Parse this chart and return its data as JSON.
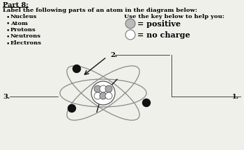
{
  "title_part": "Part 8:",
  "subtitle": "Label the following parts of an atom in the diagram below:",
  "bullets": [
    "Nucleus",
    "Atom",
    "Protons",
    "Neutrons",
    "Electrons"
  ],
  "key_title": "Use the key below to help you:",
  "key_positive_color": "#bbbbbb",
  "key_positive_label": "= positive",
  "key_nocharge_color": "#ffffff",
  "key_nocharge_label": "= no charge",
  "labels": [
    "1.",
    "2.",
    "3."
  ],
  "bg_color": "#f0f0eb",
  "proton_color": "#aaaaaa",
  "neutron_color": "#ffffff",
  "electron_color": "#111111",
  "nucleus_border": "#555555",
  "orbit_color": "#888888",
  "arrow_color": "#111111",
  "line_color": "#444444"
}
